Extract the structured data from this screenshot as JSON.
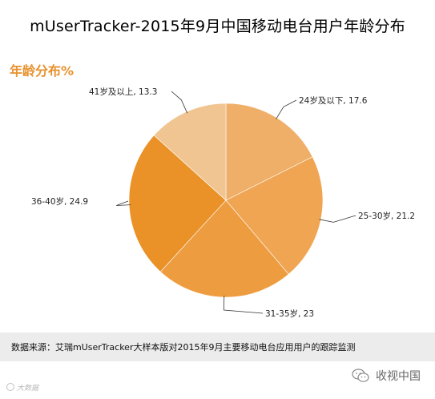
{
  "title": "mUserTracker-2015年9月中国移动电台用户年龄分布",
  "section_label": "年龄分布%",
  "source": "数据来源：艾瑞mUserTracker大样本版对2015年9月主要移动电台应用用户的跟踪监测",
  "footer": {
    "left_text": "大数据",
    "right_text": "收视中国"
  },
  "chart_data": {
    "type": "pie",
    "title": "年龄分布%",
    "slices": [
      {
        "label": "24岁及以下",
        "value": 17.6,
        "color": "#efaf69"
      },
      {
        "label": "25-30岁",
        "value": 21.2,
        "color": "#f0a553"
      },
      {
        "label": "31-35岁",
        "value": 23,
        "color": "#ee9c40"
      },
      {
        "label": "36-40岁",
        "value": 24.9,
        "color": "#ea9128"
      },
      {
        "label": "41岁及以上",
        "value": 13.3,
        "color": "#f0c591"
      }
    ]
  }
}
